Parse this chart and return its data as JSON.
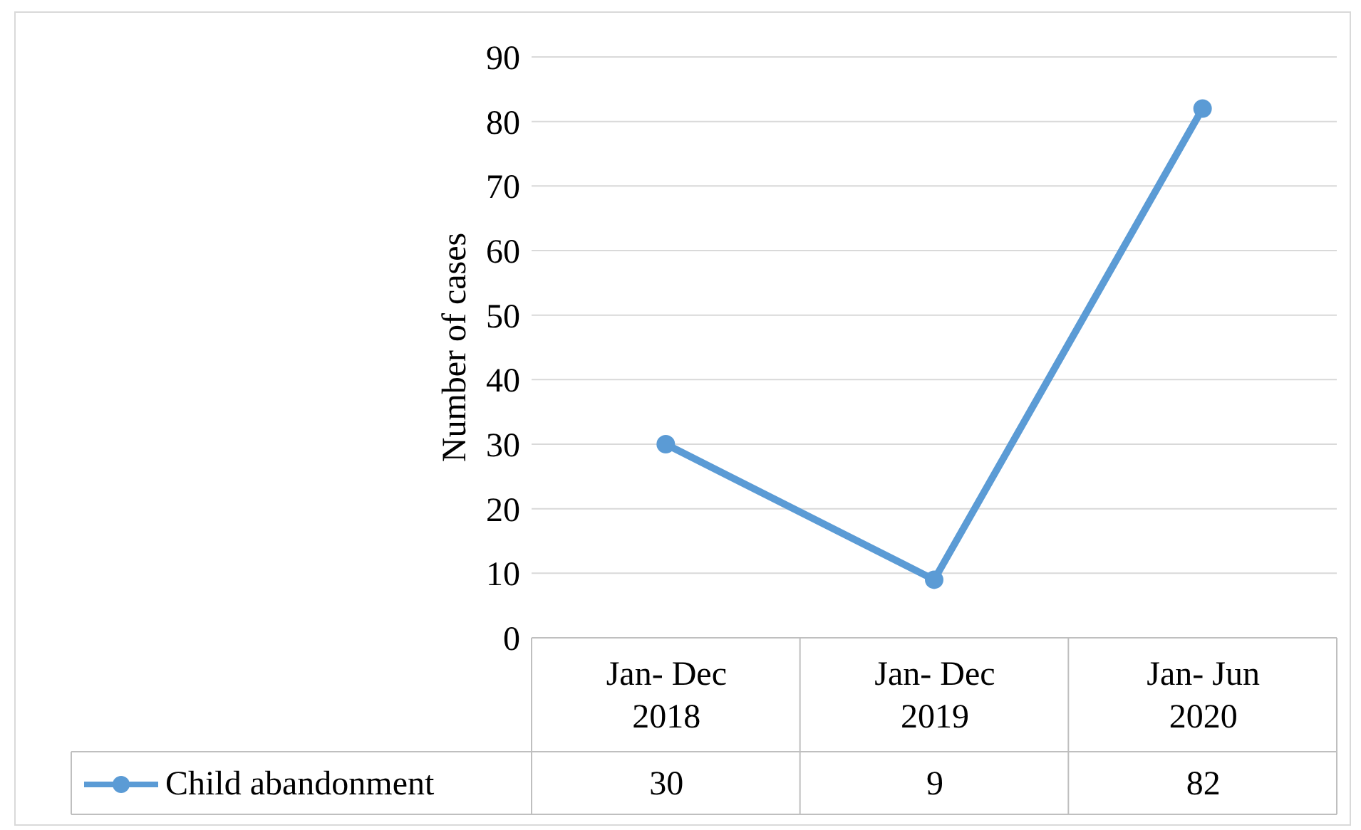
{
  "chart_data": {
    "type": "line",
    "ylabel": "Number of cases",
    "categories": [
      "Jan- Dec 2018",
      "Jan- Dec 2019",
      "Jan- Jun 2020"
    ],
    "series": [
      {
        "name": "Child abandonment",
        "color": "#5b9bd5",
        "values": [
          30,
          9,
          82
        ]
      }
    ],
    "ylim": [
      0,
      90
    ],
    "yticks": [
      0,
      10,
      20,
      30,
      40,
      50,
      60,
      70,
      80,
      90
    ],
    "grid": "y",
    "legend": "bottom",
    "marker": "circle",
    "line_style": "solid",
    "data_labels": true
  }
}
